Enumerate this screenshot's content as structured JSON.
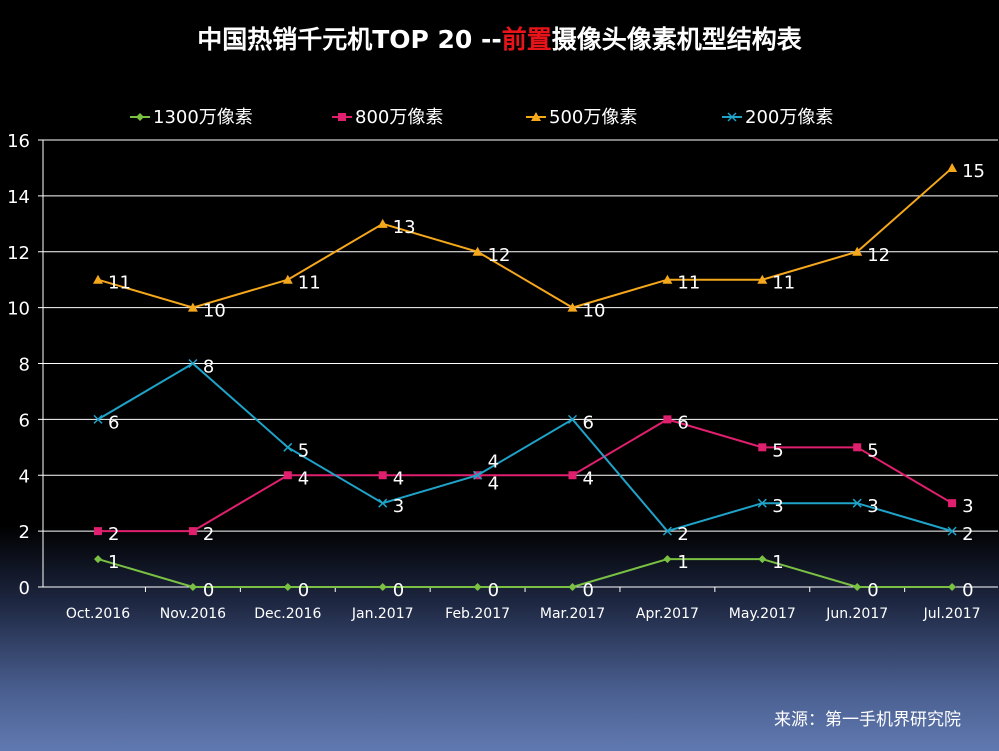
{
  "title": {
    "prefix": "中国热销千元机TOP 20 --",
    "highlight": "前置",
    "suffix": "摄像头像素机型结构表"
  },
  "source": "来源：第一手机界研究院",
  "colors": {
    "highlight": "#e8141a"
  },
  "chart_data": {
    "type": "line",
    "categories": [
      "Oct.2016",
      "Nov.2016",
      "Dec.2016",
      "Jan.2017",
      "Feb.2017",
      "Mar.2017",
      "Apr.2017",
      "May.2017",
      "Jun.2017",
      "Jul.2017"
    ],
    "ylim": [
      0,
      16
    ],
    "yticks": [
      0,
      2,
      4,
      6,
      8,
      10,
      12,
      14,
      16
    ],
    "grid": true,
    "legend": "top",
    "series": [
      {
        "name": "1300万像素",
        "color": "#7ac143",
        "marker": "diamond",
        "values": [
          1,
          0,
          0,
          0,
          0,
          0,
          1,
          1,
          0,
          0
        ]
      },
      {
        "name": "800万像素",
        "color": "#e0206e",
        "marker": "square",
        "values": [
          2,
          2,
          4,
          4,
          4,
          4,
          6,
          5,
          5,
          3
        ]
      },
      {
        "name": "500万像素",
        "color": "#f5a81c",
        "marker": "triangle",
        "values": [
          11,
          10,
          11,
          13,
          12,
          10,
          11,
          11,
          12,
          15
        ]
      },
      {
        "name": "200万像素",
        "color": "#1fa3c9",
        "marker": "x",
        "values": [
          6,
          8,
          5,
          3,
          4,
          6,
          2,
          3,
          3,
          2
        ]
      }
    ]
  }
}
